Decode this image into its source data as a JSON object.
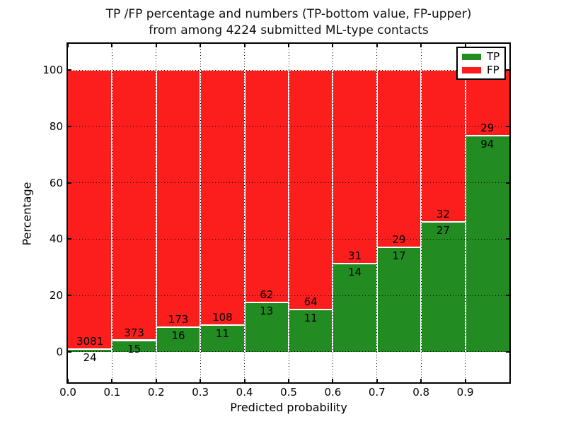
{
  "figure": {
    "title_line1": "TP /FP percentage and numbers (TP-bottom value, FP-upper)",
    "title_line2": "from among 4224 submitted ML-type contacts",
    "xlabel": "Predicted probability",
    "ylabel": "Percentage"
  },
  "legend": {
    "position": "upper right",
    "items": [
      {
        "label": "TP",
        "color": "#228B22"
      },
      {
        "label": "FP",
        "color": "#FC1E1C"
      }
    ]
  },
  "chart_data": {
    "type": "bar",
    "stacked": true,
    "normalized_to_percent": true,
    "title": "TP /FP percentage and numbers (TP-bottom value, FP-upper) from among 4224 submitted ML-type contacts",
    "xlabel": "Predicted probability",
    "ylabel": "Percentage",
    "total_contacts": 4224,
    "categories": [
      "0.0",
      "0.1",
      "0.2",
      "0.3",
      "0.4",
      "0.5",
      "0.6",
      "0.7",
      "0.8",
      "0.9"
    ],
    "bin_width": 0.1,
    "series": [
      {
        "name": "TP",
        "color": "#228B22",
        "counts": [
          24,
          15,
          16,
          11,
          13,
          11,
          14,
          17,
          27,
          94
        ]
      },
      {
        "name": "FP",
        "color": "#FC1E1C",
        "counts": [
          3081,
          373,
          173,
          108,
          62,
          64,
          31,
          29,
          32,
          29
        ]
      }
    ],
    "tp_percent_of_bin": [
      0.77,
      3.87,
      8.47,
      9.24,
      17.33,
      14.67,
      31.11,
      36.96,
      45.76,
      76.42
    ],
    "x_ticks": [
      "0.0",
      "0.1",
      "0.2",
      "0.3",
      "0.4",
      "0.5",
      "0.6",
      "0.7",
      "0.8",
      "0.9"
    ],
    "y_ticks": [
      0,
      20,
      40,
      60,
      80,
      100
    ],
    "xlim": [
      0.0,
      1.0
    ],
    "ylim": [
      -10.8,
      109.3
    ],
    "grid": true,
    "grid_style": "dotted",
    "legend_position": "upper right"
  }
}
